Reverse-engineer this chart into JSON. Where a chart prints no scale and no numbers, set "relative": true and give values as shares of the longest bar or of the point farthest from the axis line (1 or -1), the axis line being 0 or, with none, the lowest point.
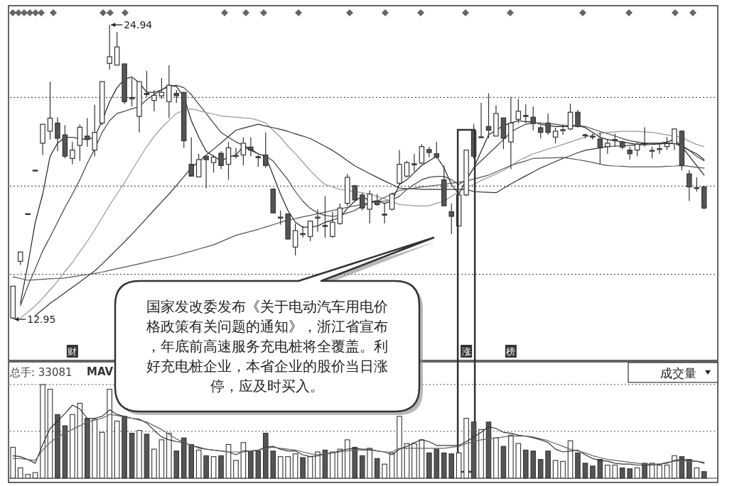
{
  "chart_data": [
    {
      "type": "candlestick",
      "tick_labels": false,
      "categories": [
        null,
        null,
        null,
        null,
        null,
        null,
        null,
        null,
        null,
        null,
        null,
        null,
        null,
        null,
        null,
        null,
        null,
        null,
        null,
        null,
        null,
        null,
        null,
        null,
        null,
        null,
        null,
        null,
        null,
        null,
        null,
        null,
        null,
        null,
        null,
        null,
        null,
        null,
        null,
        null,
        null,
        null,
        null,
        null,
        null,
        null,
        null,
        null,
        null,
        null,
        null,
        null,
        null,
        null,
        null,
        null,
        null,
        null,
        null,
        null,
        null,
        null,
        null,
        null,
        null,
        null,
        null,
        null,
        null,
        null,
        null,
        null,
        null,
        null,
        null,
        null,
        null,
        null,
        null,
        null,
        null,
        null,
        null,
        null,
        null,
        null,
        null,
        null,
        null,
        null,
        null,
        null,
        null,
        null
      ],
      "ohlc": [
        [
          13.0,
          14.3,
          12.95,
          14.3
        ],
        [
          15.31,
          15.69,
          15.16,
          15.69
        ],
        [
          17.25,
          17.25,
          17.25,
          17.25
        ],
        [
          19.02,
          19.02,
          19.02,
          19.02
        ],
        [
          20.12,
          20.89,
          19.64,
          20.89
        ],
        [
          20.61,
          22.63,
          20.27,
          21.14
        ],
        [
          20.94,
          21.18,
          19.79,
          20.32
        ],
        [
          20.46,
          20.85,
          19.5,
          19.59
        ],
        [
          19.5,
          20.17,
          19.26,
          19.84
        ],
        [
          20.03,
          20.89,
          19.4,
          20.77
        ],
        [
          20.41,
          21.14,
          19.98,
          20.27
        ],
        [
          19.84,
          21.69,
          19.59,
          20.56
        ],
        [
          20.94,
          22.63,
          20.85,
          22.63
        ],
        [
          23.37,
          24.94,
          23.11,
          23.64
        ],
        [
          23.3,
          24.65,
          23.3,
          24.04
        ],
        [
          23.35,
          23.35,
          21.71,
          21.81
        ],
        [
          21.98,
          22.77,
          21.62,
          21.93
        ],
        [
          21.21,
          22.63,
          20.56,
          22.63
        ],
        [
          22.15,
          23.06,
          22.0,
          22.1
        ],
        [
          21.86,
          22.29,
          21.42,
          22.07
        ],
        [
          22.05,
          22.77,
          21.91,
          22.19
        ],
        [
          21.81,
          23.3,
          21.14,
          22.48
        ],
        [
          22.15,
          22.29,
          21.76,
          22.05
        ],
        [
          22.19,
          22.19,
          19.93,
          20.22
        ],
        [
          19.26,
          20.36,
          18.78,
          18.78
        ],
        [
          18.75,
          19.69,
          18.73,
          19.45
        ],
        [
          19.59,
          19.59,
          18.29,
          19.45
        ],
        [
          19.33,
          19.64,
          18.92,
          19.55
        ],
        [
          19.71,
          19.79,
          19.06,
          19.21
        ],
        [
          19.26,
          20.17,
          18.63,
          19.93
        ],
        [
          19.58,
          19.93,
          19.5,
          19.62
        ],
        [
          19.64,
          20.36,
          19.21,
          20.12
        ],
        [
          19.96,
          20.36,
          19.59,
          19.84
        ],
        [
          19.57,
          19.64,
          19.16,
          19.53
        ],
        [
          19.64,
          20.56,
          19.11,
          19.21
        ],
        [
          18.25,
          18.29,
          17.28,
          17.28
        ],
        [
          17.07,
          17.38,
          16.8,
          17.11
        ],
        [
          17.24,
          17.24,
          16.18,
          16.22
        ],
        [
          15.89,
          16.85,
          15.55,
          16.56
        ],
        [
          16.44,
          16.75,
          16.27,
          16.4
        ],
        [
          16.32,
          16.95,
          16.13,
          16.95
        ],
        [
          17.07,
          17.43,
          16.51,
          17.11
        ],
        [
          16.77,
          17.96,
          16.27,
          16.73
        ],
        [
          16.32,
          17.33,
          16.27,
          16.9
        ],
        [
          16.85,
          17.67,
          16.8,
          17.48
        ],
        [
          17.67,
          18.87,
          17.57,
          18.73
        ],
        [
          18.39,
          18.39,
          17.76,
          17.81
        ],
        [
          18.01,
          18.1,
          17.38,
          17.48
        ],
        [
          17.43,
          18.2,
          16.85,
          18.05
        ],
        [
          17.77,
          18.05,
          17.57,
          17.62
        ],
        [
          17.23,
          17.67,
          16.85,
          17.19
        ],
        [
          17.43,
          18.1,
          17.38,
          18.05
        ],
        [
          18.49,
          19.84,
          18.44,
          19.26
        ],
        [
          18.78,
          19.4,
          18.73,
          19.33
        ],
        [
          19.28,
          19.69,
          18.97,
          19.24
        ],
        [
          19.31,
          20.08,
          19.26,
          19.98
        ],
        [
          19.86,
          19.98,
          19.55,
          19.74
        ],
        [
          19.69,
          20.17,
          19.5,
          19.55
        ],
        [
          18.63,
          19.21,
          17.57,
          17.57
        ],
        [
          17.33,
          17.67,
          16.42,
          17.14
        ],
        [
          16.75,
          18.05,
          16.75,
          18.01
        ],
        [
          18.01,
          19.84,
          17.96,
          19.84
        ],
        [
          20.61,
          20.89,
          19.5,
          19.59
        ],
        [
          20.35,
          21.76,
          20.32,
          20.38
        ],
        [
          20.8,
          22.15,
          20.32,
          20.65
        ],
        [
          20.41,
          21.66,
          20.41,
          21.33
        ],
        [
          21.15,
          21.15,
          19.88,
          20.32
        ],
        [
          20.17,
          22.0,
          19.06,
          20.94
        ],
        [
          21.09,
          21.91,
          20.94,
          21.42
        ],
        [
          21.25,
          21.71,
          20.94,
          21.21
        ],
        [
          21.18,
          21.62,
          20.65,
          20.92
        ],
        [
          20.75,
          20.85,
          20.32,
          20.56
        ],
        [
          20.94,
          21.33,
          20.46,
          20.56
        ],
        [
          20.37,
          20.75,
          20.12,
          20.61
        ],
        [
          20.63,
          20.89,
          20.46,
          20.67
        ],
        [
          20.7,
          21.73,
          20.65,
          21.38
        ],
        [
          21.38,
          21.47,
          20.75,
          20.8
        ],
        [
          20.46,
          20.51,
          20.32,
          20.42
        ],
        [
          20.4,
          20.51,
          20.27,
          20.37
        ],
        [
          20.29,
          20.56,
          19.26,
          19.93
        ],
        [
          19.98,
          20.27,
          19.69,
          20.12
        ],
        [
          20.23,
          20.51,
          19.98,
          20.27
        ],
        [
          20.17,
          20.22,
          19.88,
          19.96
        ],
        [
          19.84,
          19.98,
          19.45,
          19.69
        ],
        [
          19.84,
          20.17,
          19.59,
          20.08
        ],
        [
          20.11,
          20.77,
          19.98,
          20.08
        ],
        [
          19.79,
          19.98,
          19.5,
          19.83
        ],
        [
          19.86,
          20.12,
          19.69,
          19.9
        ],
        [
          19.98,
          20.37,
          19.84,
          20.1
        ],
        [
          20.1,
          20.7,
          19.84,
          20.7
        ],
        [
          20.61,
          20.65,
          19.02,
          19.21
        ],
        [
          18.87,
          19.02,
          17.77,
          18.34
        ],
        [
          18.28,
          18.73,
          18.15,
          18.31
        ],
        [
          18.34,
          18.39,
          17.43,
          17.48
        ]
      ],
      "series": [
        {
          "type": "line",
          "color": "#222222",
          "values": [
            null,
            13.6,
            15.16,
            16.9,
            18.05,
            19.59,
            20.12,
            20.36,
            20.36,
            20.31,
            20.27,
            20.36,
            21.04,
            21.81,
            22.38,
            22.72,
            22.82,
            22.58,
            22.19,
            22.19,
            22.29,
            22.48,
            22.43,
            22.0,
            21.04,
            20.36,
            19.79,
            19.59,
            19.4,
            19.55,
            19.64,
            19.98,
            19.83,
            19.69,
            19.59,
            18.82,
            18.05,
            17.38,
            16.9,
            16.7,
            16.7,
            16.75,
            16.9,
            16.99,
            17.09,
            17.47,
            17.76,
            17.96,
            17.76,
            17.76,
            17.67,
            17.76,
            18.44,
            18.63,
            18.92,
            19.21,
            19.4,
            19.59,
            19.11,
            18.44,
            18.05,
            18.63,
            19.11,
            19.79,
            20.46,
            20.65,
            20.84,
            20.94,
            21.04,
            20.99,
            20.99,
            20.89,
            20.84,
            20.8,
            20.8,
            20.8,
            20.84,
            20.75,
            20.56,
            20.36,
            20.27,
            20.22,
            20.17,
            20.12,
            20.07,
            20.12,
            20.12,
            20.12,
            20.17,
            20.27,
            19.98,
            19.59,
            19.21,
            18.82
          ]
        },
        {
          "type": "line",
          "color": "#444444",
          "values": [
            null,
            13.5,
            14.3,
            15.0,
            15.74,
            16.3,
            16.9,
            17.5,
            18.05,
            18.63,
            19.3,
            19.88,
            20.56,
            21.04,
            21.33,
            21.42,
            21.52,
            21.61,
            21.9,
            22.1,
            22.29,
            22.43,
            22.48,
            22.38,
            22.1,
            21.71,
            21.33,
            20.94,
            20.56,
            20.36,
            20.17,
            20.03,
            19.88,
            19.69,
            19.59,
            19.4,
            19.01,
            18.63,
            18.15,
            17.76,
            17.47,
            17.28,
            17.18,
            17.14,
            17.18,
            17.28,
            17.38,
            17.57,
            17.67,
            17.76,
            17.76,
            17.81,
            17.96,
            18.24,
            18.44,
            18.63,
            18.73,
            18.77,
            18.77,
            18.63,
            18.44,
            18.63,
            19.11,
            19.4,
            19.69,
            19.98,
            20.27,
            20.56,
            20.75,
            20.89,
            20.94,
            20.94,
            20.92,
            20.89,
            20.84,
            20.84,
            20.84,
            20.8,
            20.7,
            20.6,
            20.51,
            20.41,
            20.31,
            20.22,
            20.17,
            20.12,
            20.12,
            20.12,
            20.12,
            20.12,
            20.03,
            19.83,
            19.59,
            19.4
          ]
        },
        {
          "type": "line",
          "color": "#9a9a9a",
          "values": [
            null,
            13.0,
            13.24,
            13.5,
            13.81,
            14.15,
            14.49,
            14.9,
            15.26,
            15.7,
            16.12,
            16.6,
            17.09,
            17.6,
            18.05,
            18.5,
            19.01,
            19.5,
            19.98,
            20.4,
            20.75,
            21.05,
            21.33,
            21.45,
            21.52,
            21.45,
            21.37,
            21.3,
            21.23,
            21.2,
            21.18,
            21.15,
            21.13,
            21.05,
            20.94,
            20.65,
            20.36,
            20.0,
            19.69,
            19.35,
            19.01,
            18.7,
            18.44,
            18.34,
            18.24,
            18.2,
            18.15,
            18.1,
            18.05,
            17.95,
            17.86,
            17.75,
            17.62,
            17.6,
            17.57,
            17.57,
            17.57,
            17.67,
            17.76,
            17.95,
            18.15,
            18.3,
            18.44,
            18.6,
            18.73,
            18.87,
            19.01,
            19.2,
            19.4,
            19.55,
            19.69,
            19.78,
            19.88,
            19.97,
            20.07,
            20.17,
            20.27,
            20.36,
            20.46,
            20.51,
            20.56,
            20.58,
            20.6,
            20.6,
            20.6,
            20.58,
            20.56,
            20.51,
            20.46,
            20.41,
            20.36,
            20.2,
            20.07,
            19.98
          ]
        },
        {
          "type": "line",
          "color": "#333333",
          "values": [
            null,
            null,
            null,
            13.1,
            13.35,
            13.6,
            13.81,
            14.03,
            14.25,
            14.47,
            14.7,
            14.92,
            15.2,
            15.5,
            15.8,
            16.1,
            16.41,
            16.74,
            17.07,
            17.4,
            17.73,
            18.05,
            18.4,
            18.76,
            19.11,
            19.37,
            19.63,
            19.88,
            20.13,
            20.39,
            20.65,
            20.73,
            20.81,
            20.89,
            20.82,
            20.75,
            20.68,
            20.6,
            20.5,
            20.41,
            20.31,
            20.15,
            19.99,
            19.83,
            19.62,
            19.41,
            19.2,
            19.04,
            18.88,
            18.73,
            18.58,
            18.44,
            18.29,
            18.27,
            18.26,
            18.24,
            18.24,
            18.24,
            18.24,
            18.24,
            18.24,
            18.24,
            18.15,
            18.13,
            18.12,
            18.1,
            18.28,
            18.46,
            18.63,
            18.79,
            18.95,
            19.11,
            19.24,
            19.37,
            19.5,
            19.61,
            19.73,
            19.83,
            19.88,
            19.93,
            19.98,
            20.0,
            20.01,
            20.03,
            20.05,
            20.06,
            20.07,
            20.09,
            20.11,
            20.12,
            19.98,
            19.83,
            19.69,
            19.45
          ]
        },
        {
          "type": "line",
          "color": "#555555",
          "values": [
            14.68,
            14.61,
            14.54,
            14.56,
            14.58,
            14.6,
            14.61,
            14.63,
            14.68,
            14.73,
            14.77,
            14.82,
            14.87,
            14.94,
            15.01,
            15.07,
            15.14,
            15.21,
            15.28,
            15.35,
            15.41,
            15.48,
            15.55,
            15.64,
            15.72,
            15.81,
            15.89,
            15.98,
            16.11,
            16.24,
            16.37,
            16.45,
            16.53,
            16.61,
            16.71,
            16.8,
            16.9,
            16.99,
            17.05,
            17.12,
            17.18,
            17.25,
            17.31,
            17.38,
            17.44,
            17.51,
            17.57,
            17.63,
            17.7,
            17.76,
            17.91,
            18.05,
            18.2,
            18.25,
            18.29,
            18.34,
            18.37,
            18.41,
            18.44,
            18.49,
            18.53,
            18.58,
            18.66,
            18.74,
            18.82,
            18.95,
            19.08,
            19.21,
            19.31,
            19.4,
            19.5,
            19.51,
            19.52,
            19.53,
            19.54,
            19.49,
            19.45,
            19.4,
            19.34,
            19.27,
            19.21,
            19.19,
            19.18,
            19.16,
            19.16,
            19.16,
            19.16,
            19.16,
            19.18,
            19.19,
            19.21,
            19.18,
            19.14,
            19.11
          ]
        }
      ],
      "ref_lines": [
        {
          "axis": "y",
          "value": 21.98,
          "line_style": "dotted"
        },
        {
          "axis": "y",
          "value": 18.37,
          "line_style": "dotted"
        },
        {
          "axis": "y",
          "value": 14.78,
          "line_style": "dotted"
        }
      ],
      "annotations": [
        "24.94",
        "12.95",
        "财",
        "涨",
        "榜",
        "国家发改委发布《关于电动汽车用电价格政策有关问题的通知》，浙江省宣布，年底前高速服务充电桩将全覆盖。利好充电桩企业，本省企业的股价当日涨停，应及时买入。"
      ]
    },
    {
      "type": "bar",
      "relative": true,
      "tick_labels": false,
      "categories": [
        null,
        null,
        null,
        null,
        null,
        null,
        null,
        null,
        null,
        null,
        null,
        null,
        null,
        null,
        null,
        null,
        null,
        null,
        null,
        null,
        null,
        null,
        null,
        null,
        null,
        null,
        null,
        null,
        null,
        null,
        null,
        null,
        null,
        null,
        null,
        null,
        null,
        null,
        null,
        null,
        null,
        null,
        null,
        null,
        null,
        null,
        null,
        null,
        null,
        null,
        null,
        null,
        null,
        null,
        null,
        null,
        null,
        null,
        null,
        null,
        null,
        null,
        null,
        null,
        null,
        null,
        null,
        null,
        null,
        null,
        null,
        null,
        null,
        null,
        null,
        null,
        null,
        null,
        null,
        null,
        null,
        null,
        null,
        null,
        null,
        null,
        null,
        null,
        null,
        null,
        null,
        null,
        null,
        null
      ],
      "series": [
        {
          "type": "bar",
          "values": [
            0.33,
            0.11,
            0.04,
            0.06,
            1.0,
            0.95,
            0.68,
            0.56,
            0.68,
            0.8,
            0.64,
            0.63,
            0.49,
            0.95,
            0.61,
            0.66,
            0.48,
            0.51,
            0.47,
            0.31,
            0.41,
            0.48,
            0.29,
            0.43,
            0.36,
            0.3,
            0.24,
            0.23,
            0.24,
            0.36,
            0.19,
            0.38,
            0.29,
            0.29,
            0.48,
            0.29,
            0.23,
            0.23,
            0.26,
            0.22,
            0.23,
            0.28,
            0.3,
            0.28,
            0.31,
            0.41,
            0.33,
            0.24,
            0.32,
            0.21,
            0.15,
            0.27,
            0.66,
            0.37,
            0.37,
            0.41,
            0.27,
            0.31,
            0.27,
            0.26,
            0.27,
            0.64,
            0.6,
            0.52,
            0.6,
            0.43,
            0.34,
            0.46,
            0.37,
            0.3,
            0.29,
            0.2,
            0.29,
            0.19,
            0.18,
            0.4,
            0.27,
            0.16,
            0.13,
            0.2,
            0.14,
            0.14,
            0.11,
            0.1,
            0.11,
            0.16,
            0.16,
            0.14,
            0.14,
            0.24,
            0.23,
            0.2,
            0.11,
            0.07
          ],
          "colors": [
            "#ffffff",
            "#ffffff",
            "#ffffff",
            "#ffffff",
            "#ffffff",
            "#ffffff",
            "#555555",
            "#555555",
            "#ffffff",
            "#ffffff",
            "#555555",
            "#ffffff",
            "#ffffff",
            "#ffffff",
            "#ffffff",
            "#555555",
            "#555555",
            "#ffffff",
            "#555555",
            "#ffffff",
            "#ffffff",
            "#ffffff",
            "#555555",
            "#555555",
            "#555555",
            "#ffffff",
            "#555555",
            "#ffffff",
            "#555555",
            "#ffffff",
            "#ffffff",
            "#ffffff",
            "#555555",
            "#555555",
            "#555555",
            "#555555",
            "#ffffff",
            "#ffffff",
            "#ffffff",
            "#555555",
            "#ffffff",
            "#ffffff",
            "#555555",
            "#ffffff",
            "#ffffff",
            "#ffffff",
            "#555555",
            "#555555",
            "#ffffff",
            "#555555",
            "#ffffff",
            "#ffffff",
            "#ffffff",
            "#ffffff",
            "#ffffff",
            "#ffffff",
            "#555555",
            "#555555",
            "#555555",
            "#555555",
            "#ffffff",
            "#ffffff",
            "#555555",
            "#ffffff",
            "#555555",
            "#ffffff",
            "#555555",
            "#ffffff",
            "#ffffff",
            "#555555",
            "#555555",
            "#555555",
            "#555555",
            "#ffffff",
            "#ffffff",
            "#ffffff",
            "#555555",
            "#555555",
            "#555555",
            "#555555",
            "#ffffff",
            "#ffffff",
            "#555555",
            "#555555",
            "#ffffff",
            "#555555",
            "#ffffff",
            "#ffffff",
            "#ffffff",
            "#ffffff",
            "#555555",
            "#555555",
            "#ffffff",
            "#555555"
          ]
        },
        {
          "type": "line",
          "color": "#333333",
          "values": [
            0.24,
            0.23,
            0.2,
            0.16,
            0.36,
            0.53,
            0.61,
            0.69,
            0.78,
            0.74,
            0.64,
            0.64,
            0.66,
            0.73,
            0.68,
            0.66,
            0.64,
            0.63,
            0.59,
            0.51,
            0.44,
            0.41,
            0.39,
            0.38,
            0.35,
            0.33,
            0.31,
            0.3,
            0.29,
            0.28,
            0.25,
            0.29,
            0.29,
            0.3,
            0.33,
            0.34,
            0.31,
            0.29,
            0.29,
            0.25,
            0.23,
            0.24,
            0.26,
            0.27,
            0.29,
            0.31,
            0.32,
            0.31,
            0.31,
            0.29,
            0.28,
            0.25,
            0.31,
            0.34,
            0.38,
            0.41,
            0.39,
            0.35,
            0.35,
            0.35,
            0.35,
            0.39,
            0.44,
            0.49,
            0.55,
            0.53,
            0.49,
            0.48,
            0.46,
            0.45,
            0.43,
            0.41,
            0.38,
            0.31,
            0.28,
            0.29,
            0.3,
            0.25,
            0.21,
            0.19,
            0.18,
            0.16,
            0.15,
            0.15,
            0.14,
            0.14,
            0.14,
            0.15,
            0.16,
            0.19,
            0.2,
            0.19,
            0.18,
            0.16
          ]
        },
        {
          "type": "line",
          "color": "#666666",
          "values": [
            0.21,
            0.21,
            0.2,
            0.19,
            0.3,
            0.38,
            0.44,
            0.48,
            0.52,
            0.56,
            0.6,
            0.62,
            0.64,
            0.68,
            0.67,
            0.65,
            0.64,
            0.62,
            0.6,
            0.56,
            0.52,
            0.47,
            0.42,
            0.38,
            0.35,
            0.32,
            0.31,
            0.3,
            0.29,
            0.28,
            0.28,
            0.28,
            0.29,
            0.3,
            0.32,
            0.33,
            0.32,
            0.31,
            0.3,
            0.28,
            0.26,
            0.25,
            0.26,
            0.27,
            0.28,
            0.29,
            0.3,
            0.3,
            0.3,
            0.29,
            0.28,
            0.28,
            0.32,
            0.32,
            0.32,
            0.32,
            0.32,
            0.32,
            0.32,
            0.33,
            0.34,
            0.37,
            0.39,
            0.41,
            0.42,
            0.43,
            0.44,
            0.45,
            0.45,
            0.45,
            0.44,
            0.42,
            0.4,
            0.37,
            0.34,
            0.31,
            0.29,
            0.27,
            0.24,
            0.22,
            0.2,
            0.19,
            0.18,
            0.17,
            0.16,
            0.15,
            0.15,
            0.15,
            0.17,
            0.18,
            0.19,
            0.18,
            0.18,
            0.17
          ]
        }
      ],
      "ref_lines": [
        {
          "axis": "y",
          "value": 1.0,
          "line_style": "dotted"
        },
        {
          "axis": "y",
          "value": 0.5,
          "line_style": "dotted"
        }
      ],
      "annotations": [
        "总手: 33081",
        "MAV",
        "成交量"
      ]
    }
  ]
}
